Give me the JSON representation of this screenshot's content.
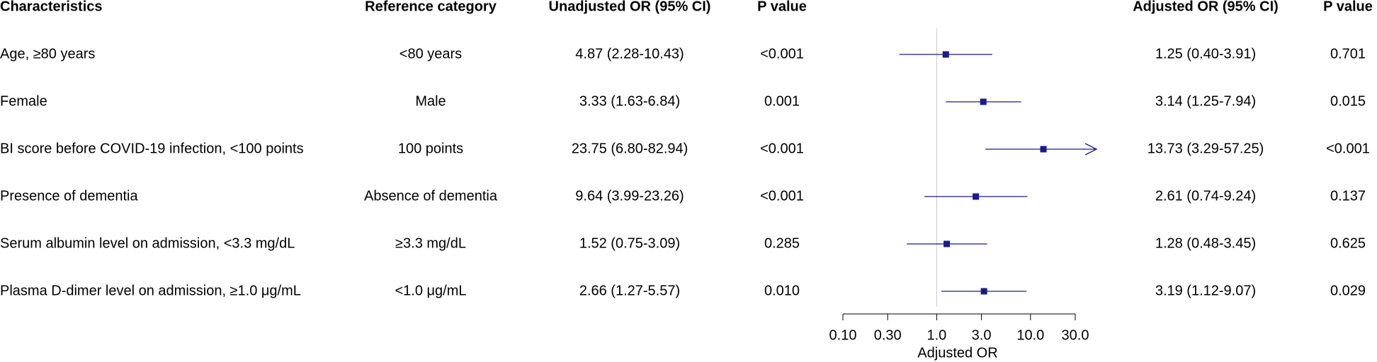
{
  "chart_data": {
    "type": "forest",
    "columns": [
      "Characteristics",
      "Reference category",
      "Unadjusted OR (95% CI)",
      "P value",
      "Adjusted OR (95% CI)",
      "P value"
    ],
    "rows": [
      [
        "Age, ≥80 years",
        "<80 years",
        "4.87 (2.28-10.43)",
        "<0.001",
        "1.25 (0.40-3.91)",
        "0.701"
      ],
      [
        "Female",
        "Male",
        "3.33 (1.63-6.84)",
        "0.001",
        "3.14 (1.25-7.94)",
        "0.015"
      ],
      [
        "BI score before COVID-19 infection, <100 points",
        "100 points",
        "23.75 (6.80-82.94)",
        "<0.001",
        "13.73 (3.29-57.25)",
        "<0.001"
      ],
      [
        "Presence of dementia",
        "Absence of dementia",
        "9.64 (3.99-23.26)",
        "<0.001",
        "2.61 (0.74-9.24)",
        "0.137"
      ],
      [
        "Serum albumin level on admission, <3.3 mg/dL",
        "≥3.3 mg/dL",
        "1.52 (0.75-3.09)",
        "0.285",
        "1.28 (0.48-3.45)",
        "0.625"
      ],
      [
        "Plasma D-dimer level on admission, ≥1.0 μg/mL",
        "<1.0 μg/mL",
        "2.66 (1.27-5.57)",
        "0.010",
        "3.19 (1.12-9.07)",
        "0.029"
      ]
    ],
    "values": [
      1.25,
      3.14,
      13.73,
      2.61,
      1.28,
      3.19
    ],
    "ci_low": [
      0.4,
      1.25,
      3.29,
      0.74,
      0.48,
      1.12
    ],
    "ci_high": [
      3.91,
      7.94,
      57.25,
      9.24,
      3.45,
      9.07
    ],
    "color": "#1a1a8c",
    "log_x": true,
    "reference_line": 1,
    "xlim": [
      0.1,
      30
    ],
    "xticks": [
      {
        "value": 0.1,
        "label": "0.10"
      },
      {
        "value": 0.3,
        "label": "0.30"
      },
      {
        "value": 1,
        "label": "1.0"
      },
      {
        "value": 3,
        "label": "3.0"
      },
      {
        "value": 10,
        "label": "10.0"
      },
      {
        "value": 30,
        "label": "30.0"
      }
    ],
    "xlabel": "Adjusted OR"
  }
}
